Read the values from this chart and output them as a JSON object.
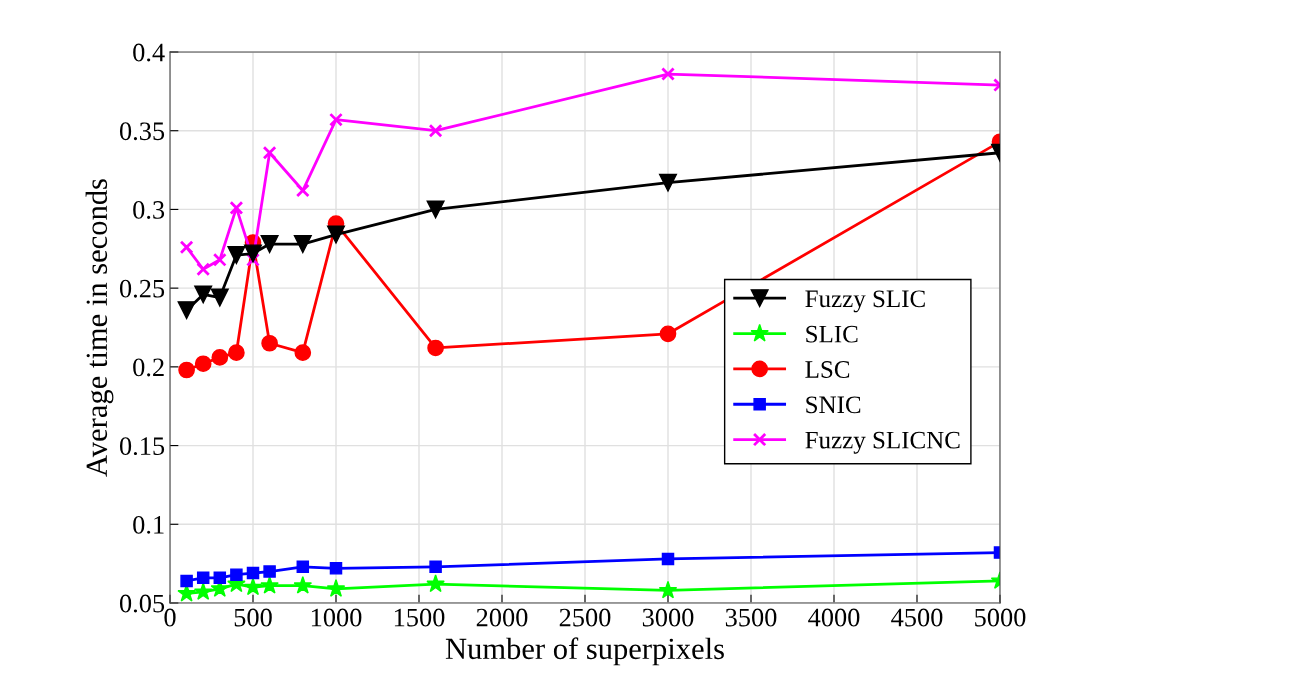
{
  "chart_data": {
    "type": "line",
    "xlabel": "Number of superpixels",
    "ylabel": "Average time in seconds",
    "x": [
      100,
      200,
      300,
      400,
      500,
      600,
      800,
      1000,
      1600,
      3000,
      5000
    ],
    "xlim": [
      0,
      5000
    ],
    "xticks": [
      0,
      500,
      1000,
      1500,
      2000,
      2500,
      3000,
      3500,
      4000,
      4500,
      5000
    ],
    "ylim": [
      0.05,
      0.4
    ],
    "yticks": [
      0.05,
      0.1,
      0.15,
      0.2,
      0.25,
      0.3,
      0.35,
      0.4
    ],
    "grid": true,
    "legend": "right",
    "line_style": "solid",
    "series": [
      {
        "name": "Fuzzy SLIC",
        "color": "#000000",
        "marker": "triangle",
        "values": [
          0.236,
          0.246,
          0.244,
          0.271,
          0.272,
          0.278,
          0.278,
          0.284,
          0.3,
          0.317,
          0.336
        ]
      },
      {
        "name": "SLIC",
        "color": "#00ff00",
        "marker": "star",
        "values": [
          0.056,
          0.057,
          0.059,
          0.062,
          0.06,
          0.061,
          0.061,
          0.059,
          0.062,
          0.058,
          0.064
        ]
      },
      {
        "name": "LSC",
        "color": "#ff0000",
        "marker": "circle",
        "values": [
          0.198,
          0.202,
          0.206,
          0.209,
          0.279,
          0.215,
          0.209,
          0.291,
          0.212,
          0.221,
          0.343
        ]
      },
      {
        "name": "SNIC",
        "color": "#0000ff",
        "marker": "square",
        "values": [
          0.064,
          0.066,
          0.066,
          0.068,
          0.069,
          0.07,
          0.073,
          0.072,
          0.073,
          0.078,
          0.082
        ]
      },
      {
        "name": "Fuzzy SLICNC",
        "color": "#ff00ff",
        "marker": "cross",
        "values": [
          0.276,
          0.262,
          0.268,
          0.301,
          0.268,
          0.336,
          0.312,
          0.357,
          0.35,
          0.386,
          0.379
        ]
      }
    ]
  }
}
